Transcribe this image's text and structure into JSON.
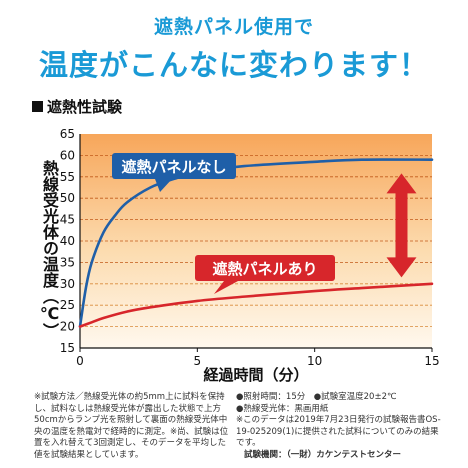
{
  "header": {
    "line1": "遮熱パネル使用で",
    "line2": "温度がこんなに変わります！"
  },
  "section_title": "遮熱性試験",
  "chart_data": {
    "type": "line",
    "xlabel": "経過時間（分）",
    "ylabel": "熱線受光体の温度（℃）",
    "xlim": [
      0,
      15
    ],
    "ylim": [
      15,
      65
    ],
    "x_ticks": [
      0,
      5,
      10,
      15
    ],
    "y_ticks": [
      15,
      20,
      25,
      30,
      35,
      40,
      45,
      50,
      55,
      60,
      65
    ],
    "grid": "dashed horizontal",
    "series": [
      {
        "name": "遮熱パネルなし",
        "color": "#1f5fa8",
        "x": [
          0,
          0.25,
          0.5,
          1,
          1.5,
          2,
          3,
          4,
          5,
          7,
          10,
          12,
          15
        ],
        "values": [
          20,
          29,
          35,
          42,
          46,
          49,
          52.5,
          54.5,
          56,
          57.5,
          58.5,
          59,
          59
        ]
      },
      {
        "name": "遮熱パネルあり",
        "color": "#d7262b",
        "x": [
          0,
          0.5,
          1,
          2,
          3,
          5,
          7,
          10,
          12,
          15
        ],
        "values": [
          20,
          21,
          22,
          23.5,
          24.5,
          26,
          27,
          28.3,
          29,
          30
        ]
      }
    ],
    "annotation": "double arrow between series"
  },
  "notes": {
    "left": "※試験方法／熱線受光体の約5mm上に試料を保持し、試料なしは熱線受光体が露出した状態で上方50cmからランプ光を照射して裏面の熱線受光体中央の温度を熱電対で経時的に測定。※尚、試験は位置を入れ替えて3回測定し、そのデータを平均した値を試験結果としています。",
    "right": [
      "●照射時間：15分　●試験室温度20±2℃",
      "●熱線受光体：黒画用紙",
      "※このデータは2019年7月23日発行の試験報告書OS-19-025209(1)に提供された試料についてのみの結果です。"
    ],
    "lab": "試験機関：（一財）カケンテストセンター"
  },
  "colors": {
    "headline": "#1a9ad6",
    "plot_bg_top": "#f7a65a",
    "plot_bg_bottom": "#fff6e8",
    "arrow": "#d7262b"
  }
}
